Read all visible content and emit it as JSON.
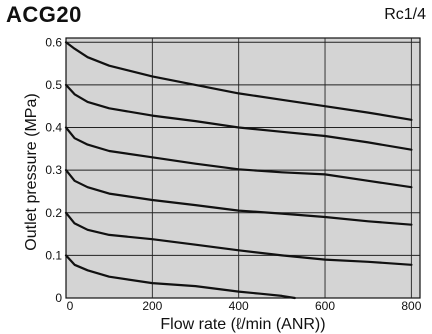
{
  "chart_data": {
    "type": "line",
    "title": "ACG20",
    "subtitle": "Rc1/4",
    "xlabel": "Flow rate  (ℓ/min (ANR))",
    "ylabel": "Outlet pressure  (MPa)",
    "xlim": [
      0,
      820
    ],
    "ylim": [
      0,
      0.61
    ],
    "xticks": [
      0,
      200,
      400,
      600,
      800
    ],
    "xtick_labels": [
      "0",
      "200",
      "400",
      "600",
      "800"
    ],
    "yticks": [
      0,
      0.1,
      0.2,
      0.3,
      0.4,
      0.5,
      0.6
    ],
    "ytick_labels": [
      "0",
      "0.1",
      "0.2",
      "0.3",
      "0.4",
      "0.5",
      "0.6"
    ],
    "grid": true,
    "background": "#d4d4d4",
    "line_color": "#111111",
    "series": [
      {
        "x": [
          0,
          20,
          50,
          100,
          200,
          300,
          400,
          500,
          600,
          700,
          800
        ],
        "y": [
          0.6,
          0.585,
          0.565,
          0.545,
          0.52,
          0.5,
          0.48,
          0.465,
          0.45,
          0.435,
          0.418
        ]
      },
      {
        "x": [
          0,
          20,
          50,
          100,
          200,
          300,
          400,
          500,
          600,
          700,
          800
        ],
        "y": [
          0.5,
          0.478,
          0.46,
          0.445,
          0.428,
          0.415,
          0.4,
          0.39,
          0.38,
          0.365,
          0.348
        ]
      },
      {
        "x": [
          0,
          20,
          50,
          100,
          200,
          300,
          400,
          500,
          600,
          700,
          800
        ],
        "y": [
          0.4,
          0.375,
          0.36,
          0.345,
          0.33,
          0.315,
          0.302,
          0.295,
          0.29,
          0.275,
          0.26
        ]
      },
      {
        "x": [
          0,
          20,
          50,
          100,
          200,
          300,
          400,
          500,
          600,
          700,
          800
        ],
        "y": [
          0.3,
          0.275,
          0.26,
          0.245,
          0.23,
          0.218,
          0.205,
          0.198,
          0.19,
          0.18,
          0.172
        ]
      },
      {
        "x": [
          0,
          20,
          50,
          100,
          200,
          300,
          400,
          500,
          600,
          700,
          800
        ],
        "y": [
          0.2,
          0.175,
          0.16,
          0.148,
          0.138,
          0.125,
          0.112,
          0.1,
          0.09,
          0.085,
          0.078
        ]
      },
      {
        "x": [
          0,
          20,
          50,
          100,
          200,
          300,
          400,
          450,
          500,
          530
        ],
        "y": [
          0.1,
          0.078,
          0.065,
          0.05,
          0.035,
          0.028,
          0.015,
          0.01,
          0.005,
          0.0
        ]
      }
    ]
  }
}
